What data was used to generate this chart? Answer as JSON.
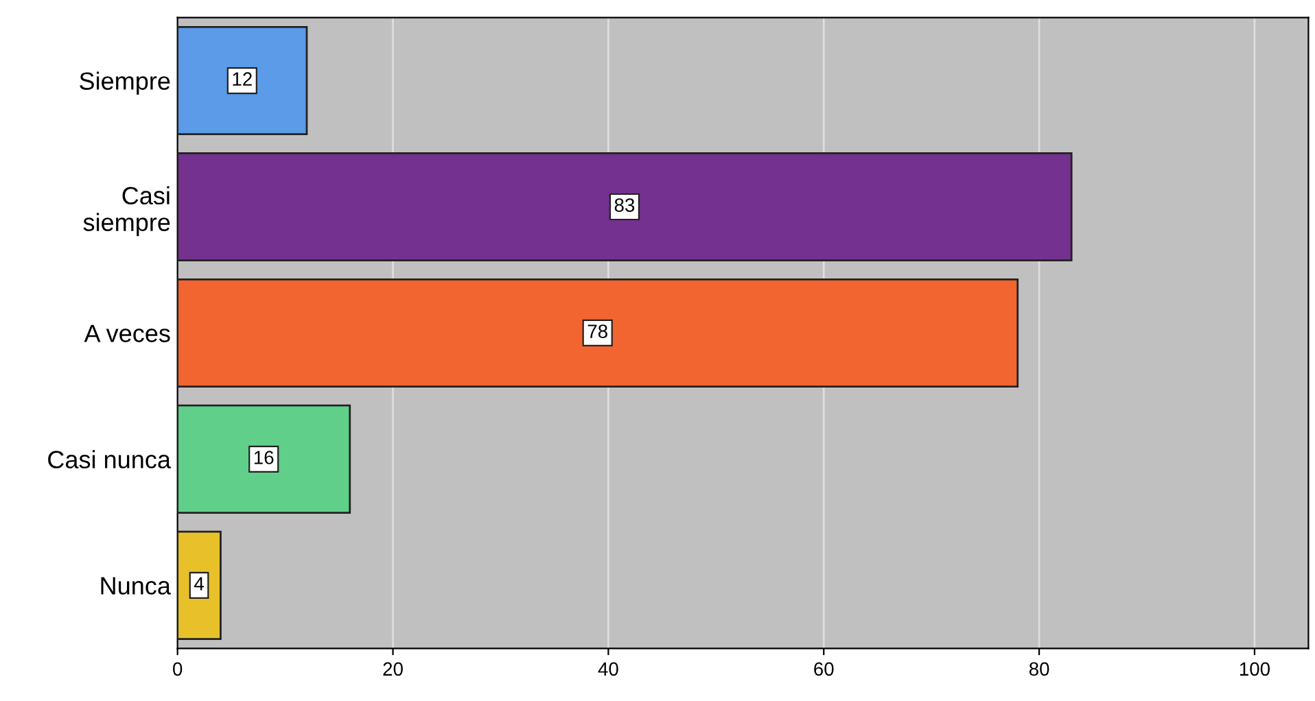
{
  "chart_data": {
    "type": "bar",
    "orientation": "horizontal",
    "categories": [
      "Siempre",
      "Casi\nsiempre",
      "A veces",
      "Casi nunca",
      "Nunca"
    ],
    "values": [
      12,
      83,
      78,
      16,
      4
    ],
    "colors": [
      "#5b9be8",
      "#74318f",
      "#f26530",
      "#5fcf8a",
      "#e8c12a"
    ],
    "xlim": [
      0,
      105
    ],
    "xticks": [
      0,
      20,
      40,
      60,
      80,
      100
    ],
    "grid": "x",
    "data_labels": true
  }
}
